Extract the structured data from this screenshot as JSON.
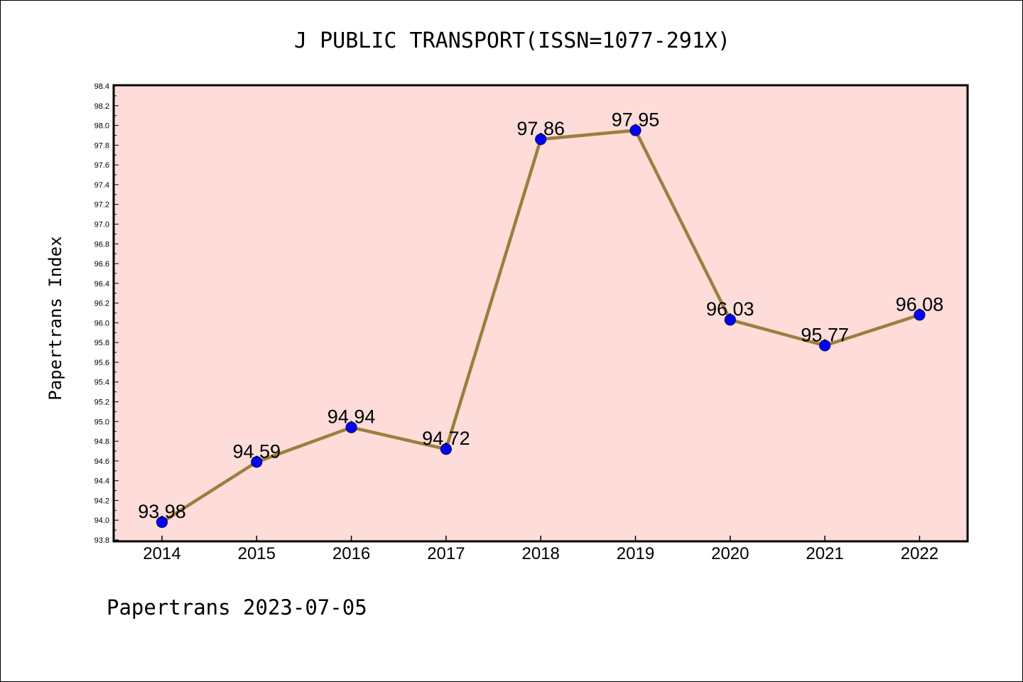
{
  "chart_data": {
    "type": "line",
    "title": "J PUBLIC TRANSPORT(ISSN=1077-291X)",
    "ylabel": "Papertrans Index",
    "xlabel": "",
    "categories": [
      "2014",
      "2015",
      "2016",
      "2017",
      "2018",
      "2019",
      "2020",
      "2021",
      "2022"
    ],
    "values": [
      93.98,
      94.59,
      94.94,
      94.72,
      97.86,
      97.95,
      96.03,
      95.77,
      96.08
    ],
    "data_labels": [
      "93.98",
      "94.59",
      "94.94",
      "94.72",
      "97.86",
      "97.95",
      "96.03",
      "95.77",
      "96.08"
    ],
    "ylim": [
      93.8,
      98.4
    ],
    "yticks": [
      "93.8",
      "94.0",
      "94.2",
      "94.4",
      "94.6",
      "94.8",
      "95.0",
      "95.2",
      "95.4",
      "95.6",
      "95.8",
      "96.0",
      "96.2",
      "96.4",
      "96.6",
      "96.8",
      "97.0",
      "97.2",
      "97.4",
      "97.6",
      "97.8",
      "98.0",
      "98.2",
      "98.4"
    ],
    "grid": false,
    "legend": "none",
    "colors": {
      "plot_background": "#fddcd9",
      "line": "#9a7f3e",
      "marker": "#0000ff",
      "marker_edge": "#0a0a6a"
    }
  },
  "footer": "Papertrans 2023-07-05"
}
